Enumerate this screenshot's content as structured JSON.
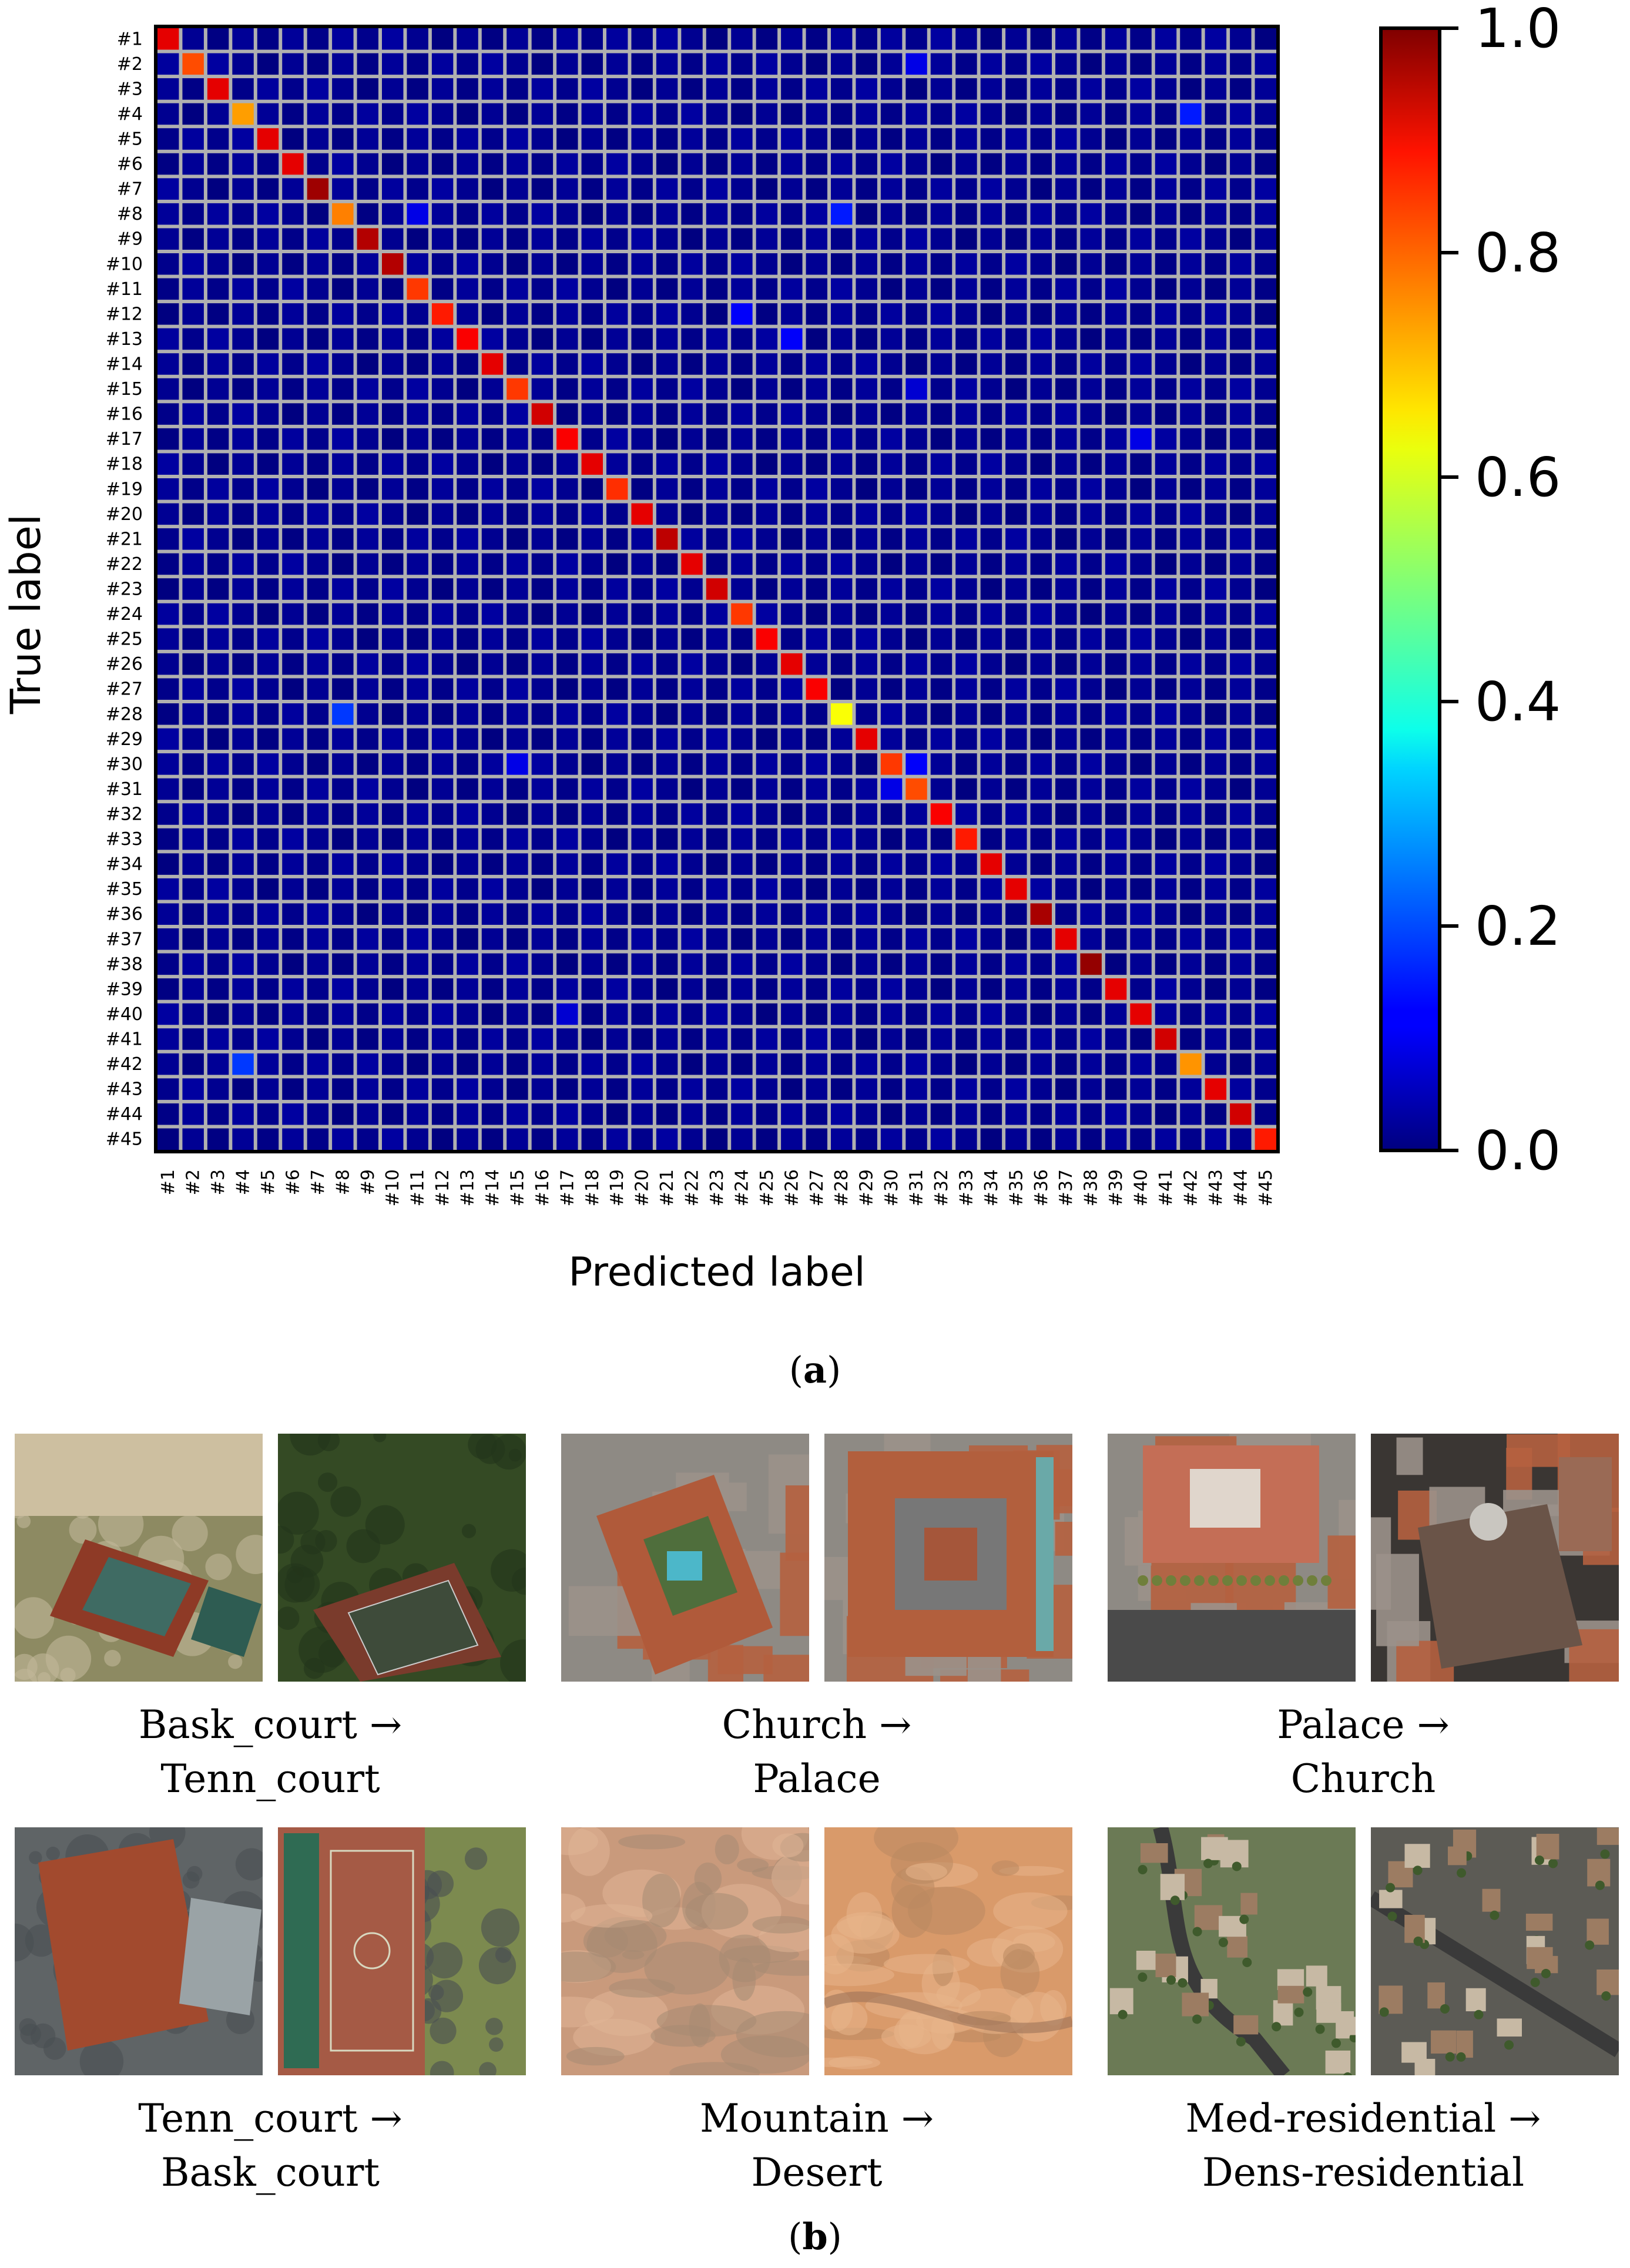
{
  "chart_data": {
    "type": "heatmap",
    "xlabel": "Predicted label",
    "ylabel": "True label",
    "labels": [
      "#1",
      "#2",
      "#3",
      "#4",
      "#5",
      "#6",
      "#7",
      "#8",
      "#9",
      "#10",
      "#11",
      "#12",
      "#13",
      "#14",
      "#15",
      "#16",
      "#17",
      "#18",
      "#19",
      "#20",
      "#21",
      "#22",
      "#23",
      "#24",
      "#25",
      "#26",
      "#27",
      "#28",
      "#29",
      "#30",
      "#31",
      "#32",
      "#33",
      "#34",
      "#35",
      "#36",
      "#37",
      "#38",
      "#39",
      "#40",
      "#41",
      "#42",
      "#43",
      "#44",
      "#45"
    ],
    "diagonal": [
      0.9,
      0.8,
      0.9,
      0.72,
      0.9,
      0.9,
      0.97,
      0.75,
      0.95,
      0.95,
      0.82,
      0.85,
      0.88,
      0.9,
      0.82,
      0.92,
      0.88,
      0.9,
      0.83,
      0.9,
      0.94,
      0.9,
      0.92,
      0.82,
      0.88,
      0.9,
      0.88,
      0.62,
      0.9,
      0.82,
      0.8,
      0.88,
      0.85,
      0.9,
      0.9,
      0.96,
      0.9,
      0.98,
      0.9,
      0.9,
      0.92,
      0.73,
      0.9,
      0.92,
      0.85
    ],
    "off_diagonal": [
      {
        "row": 2,
        "col": 31,
        "value": 0.1
      },
      {
        "row": 4,
        "col": 42,
        "value": 0.15
      },
      {
        "row": 8,
        "col": 11,
        "value": 0.1
      },
      {
        "row": 8,
        "col": 28,
        "value": 0.15
      },
      {
        "row": 12,
        "col": 24,
        "value": 0.12
      },
      {
        "row": 13,
        "col": 26,
        "value": 0.12
      },
      {
        "row": 15,
        "col": 31,
        "value": 0.08
      },
      {
        "row": 17,
        "col": 40,
        "value": 0.1
      },
      {
        "row": 28,
        "col": 8,
        "value": 0.18
      },
      {
        "row": 30,
        "col": 15,
        "value": 0.1
      },
      {
        "row": 30,
        "col": 31,
        "value": 0.12
      },
      {
        "row": 31,
        "col": 30,
        "value": 0.1
      },
      {
        "row": 42,
        "col": 4,
        "value": 0.18
      },
      {
        "row": 40,
        "col": 17,
        "value": 0.08
      }
    ],
    "zlim": [
      0,
      1
    ],
    "colormap": "jet",
    "colorbar_ticks": [
      "0.0",
      "0.2",
      "0.4",
      "0.6",
      "0.8",
      "1.0"
    ],
    "grid": true
  },
  "figure_a": {
    "caption_letter": "a"
  },
  "figure_b": {
    "caption_letter": "b",
    "pairs": [
      {
        "line1": "Bask_court →",
        "line2": "Tenn_court",
        "kinds": [
          "court-a",
          "court-b"
        ]
      },
      {
        "line1": "Church →",
        "line2": "Palace",
        "kinds": [
          "church",
          "palace"
        ]
      },
      {
        "line1": "Palace →",
        "line2": "Church",
        "kinds": [
          "palace2",
          "church2"
        ]
      },
      {
        "line1": "Tenn_court →",
        "line2": "Bask_court",
        "kinds": [
          "court-c",
          "court-d"
        ]
      },
      {
        "line1": "Mountain →",
        "line2": "Desert",
        "kinds": [
          "mountain",
          "desert"
        ]
      },
      {
        "line1": "Med-residential →",
        "line2": "Dens-residential",
        "kinds": [
          "resid-a",
          "resid-b"
        ]
      }
    ]
  }
}
